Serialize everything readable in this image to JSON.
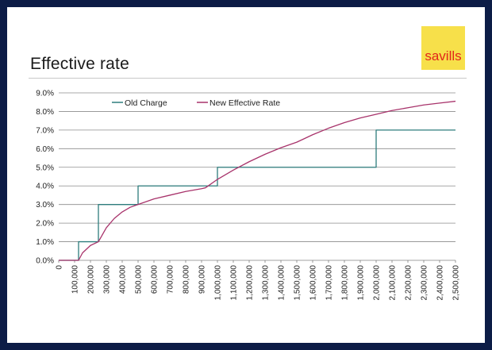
{
  "slide": {
    "title": "Effective rate",
    "logo_text": "savills"
  },
  "colors": {
    "frame": "#0c1c46",
    "old_charge": "#2e7d7d",
    "new_rate": "#a8336b",
    "logo_bg": "#f7e04a",
    "logo_text": "#e2261b",
    "grid": "#8c8c8c"
  },
  "chart_data": {
    "type": "line",
    "title": "",
    "xlabel": "",
    "ylabel": "",
    "xlim": [
      0,
      2500000
    ],
    "ylim": [
      0,
      9
    ],
    "grid": "horizontal",
    "legend_position": "top-left",
    "x_tick_labels": [
      "0",
      "100,000",
      "200,000",
      "300,000",
      "400,000",
      "500,000",
      "600,000",
      "700,000",
      "800,000",
      "900,000",
      "1,000,000",
      "1,100,000",
      "1,200,000",
      "1,300,000",
      "1,400,000",
      "1,500,000",
      "1,600,000",
      "1,700,000",
      "1,800,000",
      "1,900,000",
      "2,000,000",
      "2,100,000",
      "2,200,000",
      "2,300,000",
      "2,400,000",
      "2,500,000"
    ],
    "y_tick_labels": [
      "0.0%",
      "1.0%",
      "2.0%",
      "3.0%",
      "4.0%",
      "5.0%",
      "6.0%",
      "7.0%",
      "8.0%",
      "9.0%"
    ],
    "series": [
      {
        "name": "Old Charge",
        "x": [
          0,
          125000,
          125000,
          250000,
          250000,
          500000,
          500000,
          1000000,
          1000000,
          2000000,
          2000000,
          2500000
        ],
        "y": [
          0,
          0,
          1,
          1,
          3,
          3,
          4,
          4,
          5,
          5,
          7,
          7
        ]
      },
      {
        "name": "New Effective Rate",
        "x": [
          0,
          125000,
          150000,
          200000,
          250000,
          300000,
          350000,
          400000,
          450000,
          500000,
          600000,
          700000,
          800000,
          900000,
          925000,
          1000000,
          1100000,
          1200000,
          1300000,
          1400000,
          1500000,
          1600000,
          1700000,
          1800000,
          1900000,
          2000000,
          2100000,
          2200000,
          2300000,
          2400000,
          2500000
        ],
        "y": [
          0,
          0,
          0.4,
          0.8,
          1.0,
          1.75,
          2.25,
          2.6,
          2.85,
          3.0,
          3.3,
          3.5,
          3.7,
          3.85,
          3.9,
          4.35,
          4.85,
          5.3,
          5.7,
          6.05,
          6.35,
          6.75,
          7.1,
          7.4,
          7.65,
          7.85,
          8.05,
          8.2,
          8.35,
          8.45,
          8.55
        ]
      }
    ]
  }
}
